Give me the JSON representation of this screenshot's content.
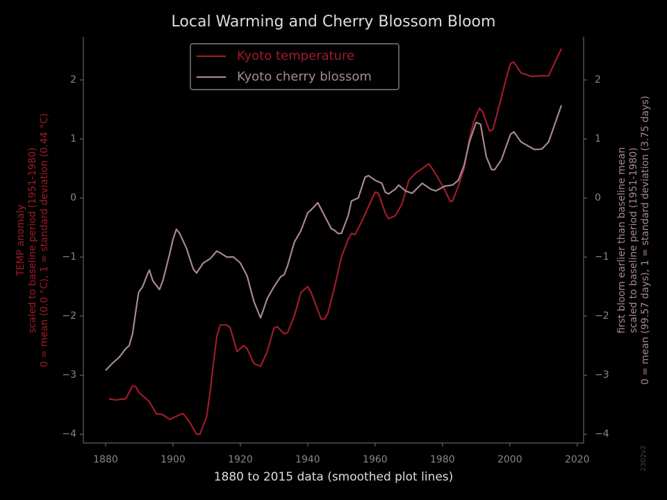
{
  "chart_data": {
    "type": "line",
    "title": "Local Warming and Cherry Blossom Bloom",
    "x_label": "1880 to 2015 data (smoothed plot lines)",
    "y_label": [
      "TEMP anomaly",
      "scaled to baseline period (1951-1980)",
      "0 = mean (0.0 °C), 1 = standard deviation (0.44 °C)"
    ],
    "y2_label": [
      "first bloom earlier than baseline mean",
      "scaled to baseline period (1951-1980)",
      "0 = mean (99.57 days), 1 = standard deviation (3.75 days)"
    ],
    "annotation": "2302v2",
    "xlim": [
      1873.4,
      2021.9
    ],
    "xticks": [
      1880,
      1900,
      1920,
      1940,
      1960,
      1980,
      2000,
      2020
    ],
    "ylim": [
      -4.15,
      2.73
    ],
    "yticks": [
      {
        "value": -4,
        "label": "−4"
      },
      {
        "value": -3,
        "label": "−3"
      },
      {
        "value": -2,
        "label": "−2"
      },
      {
        "value": -1,
        "label": "−1"
      },
      0,
      1,
      2
    ],
    "y2lim": [
      -4.15,
      2.73
    ],
    "y2ticks": [
      {
        "value": -4,
        "label": "−4"
      },
      {
        "value": -3,
        "label": "−3"
      },
      {
        "value": -2,
        "label": "−2"
      },
      {
        "value": -1,
        "label": "−1"
      },
      0,
      1,
      2
    ],
    "legend": "upper center",
    "series": [
      {
        "name": "Kyoto temperature",
        "color": "#a01c28",
        "x": [
          1881,
          1883,
          1886,
          1888,
          1889,
          1890,
          1893,
          1895,
          1897,
          1899,
          1902,
          1903,
          1905,
          1907,
          1908,
          1910,
          1911,
          1912,
          1913,
          1914,
          1916,
          1917,
          1919,
          1921,
          1922,
          1924,
          1926,
          1928,
          1930,
          1931,
          1933,
          1934,
          1936,
          1938,
          1940,
          1941,
          1943,
          1944,
          1945,
          1946,
          1948,
          1950,
          1952,
          1953,
          1954,
          1956,
          1958,
          1960,
          1961,
          1963,
          1964,
          1966,
          1968,
          1970,
          1972,
          1974,
          1976,
          1978.6,
          1980.6,
          1982.3,
          1983,
          1984.7,
          1986.4,
          1988,
          1989.3,
          1991,
          1992,
          1994,
          1995,
          1997,
          1998.8,
          2000.2,
          2001.2,
          2003.3,
          2006.4,
          2009.5,
          2011.5,
          2015.3
        ],
        "values": [
          -3.4,
          -3.42,
          -3.4,
          -3.18,
          -3.2,
          -3.3,
          -3.45,
          -3.65,
          -3.67,
          -3.75,
          -3.67,
          -3.65,
          -3.8,
          -4.0,
          -4.0,
          -3.7,
          -3.3,
          -2.8,
          -2.35,
          -2.15,
          -2.15,
          -2.2,
          -2.6,
          -2.5,
          -2.55,
          -2.8,
          -2.85,
          -2.6,
          -2.2,
          -2.18,
          -2.3,
          -2.28,
          -2.0,
          -1.6,
          -1.5,
          -1.6,
          -1.9,
          -2.05,
          -2.05,
          -1.95,
          -1.5,
          -1.0,
          -0.7,
          -0.6,
          -0.62,
          -0.4,
          -0.15,
          0.1,
          0.08,
          -0.25,
          -0.35,
          -0.3,
          -0.1,
          0.3,
          0.42,
          0.5,
          0.58,
          0.35,
          0.15,
          -0.06,
          -0.05,
          0.2,
          0.5,
          1.0,
          1.3,
          1.52,
          1.45,
          1.13,
          1.16,
          1.6,
          2.0,
          2.28,
          2.3,
          2.12,
          2.06,
          2.07,
          2.07,
          2.53
        ]
      },
      {
        "name": "Kyoto cherry blossom",
        "color": "#a88890",
        "axis": "y2",
        "x": [
          1880,
          1882,
          1884,
          1886,
          1887,
          1888,
          1889,
          1889.8,
          1891,
          1892.5,
          1893,
          1894,
          1896,
          1897,
          1899,
          1900,
          1901,
          1902,
          1904,
          1906,
          1907,
          1909,
          1911,
          1913,
          1914,
          1916,
          1918,
          1920,
          1922,
          1924,
          1926,
          1928,
          1930,
          1932,
          1933,
          1934,
          1936,
          1938,
          1940,
          1941,
          1943,
          1945,
          1947,
          1948,
          1949,
          1950,
          1952,
          1953,
          1955,
          1957,
          1958,
          1960,
          1962,
          1963,
          1964,
          1966,
          1967,
          1969,
          1971,
          1974,
          1976.5,
          1978,
          1980.6,
          1983,
          1984.7,
          1986.4,
          1988,
          1990,
          1991.3,
          1993,
          1994.6,
          1995.5,
          1997.5,
          2000.2,
          2001.2,
          2003.3,
          2006.4,
          2007.4,
          2009.5,
          2011.5,
          2015.3
        ],
        "values": [
          -2.92,
          -2.8,
          -2.7,
          -2.55,
          -2.5,
          -2.3,
          -1.9,
          -1.6,
          -1.5,
          -1.28,
          -1.22,
          -1.4,
          -1.55,
          -1.4,
          -0.95,
          -0.7,
          -0.53,
          -0.6,
          -0.85,
          -1.2,
          -1.27,
          -1.1,
          -1.03,
          -0.9,
          -0.93,
          -1.0,
          -1.0,
          -1.1,
          -1.32,
          -1.75,
          -2.03,
          -1.7,
          -1.5,
          -1.33,
          -1.3,
          -1.15,
          -0.75,
          -0.55,
          -0.25,
          -0.2,
          -0.08,
          -0.3,
          -0.52,
          -0.55,
          -0.6,
          -0.6,
          -0.3,
          -0.05,
          0.0,
          0.35,
          0.38,
          0.3,
          0.25,
          0.1,
          0.07,
          0.15,
          0.22,
          0.12,
          0.08,
          0.25,
          0.15,
          0.12,
          0.2,
          0.22,
          0.3,
          0.55,
          0.95,
          1.28,
          1.25,
          0.7,
          0.48,
          0.48,
          0.65,
          1.08,
          1.12,
          0.95,
          0.85,
          0.82,
          0.83,
          0.95,
          1.57
        ]
      }
    ]
  }
}
